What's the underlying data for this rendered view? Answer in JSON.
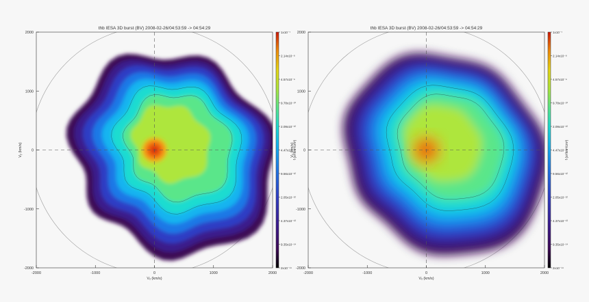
{
  "chart_data": [
    {
      "type": "heatmap",
      "title": "thb IESA 3D burst (BV) 2008-02-26/04:53:59 -> 04:54:29",
      "xlabel": "Vₓ (km/s)",
      "ylabel": "Vᵧ (km/s)",
      "xlim": [
        -2000,
        2000
      ],
      "ylim": [
        -2000,
        2000
      ],
      "xticks": [
        "-2000",
        "-1000",
        "0",
        "1000",
        "2000"
      ],
      "yticks": [
        "2000",
        "1000",
        "0",
        "-1000",
        "-2000"
      ],
      "grid": "dashed cross-hair at 0,0",
      "colorbar": {
        "label": "f (s³/km³/cm³)",
        "scale": "log",
        "ticks": [
          "1x10⁻⁷",
          "2.14x10⁻⁸",
          "4.57x10⁻⁹",
          "9.78x10⁻¹⁰",
          "2.09x10⁻¹⁰",
          "4.47x10⁻¹¹",
          "9.56x10⁻¹²",
          "2.05x10⁻¹²",
          "4.37x10⁻¹³",
          "9.35x10⁻¹⁴",
          "2x10⁻¹⁴"
        ]
      },
      "rendering": "raw (unsmoothed)"
    },
    {
      "type": "heatmap",
      "title": "thb IESA 3D burst (BV) 2008-02-26/04:53:59 -> 04:54:29",
      "xlabel": "Vₓ (km/s)",
      "ylabel": "Vᵧ (km/s)",
      "xlim": [
        -2000,
        2000
      ],
      "ylim": [
        -2000,
        2000
      ],
      "xticks": [
        "-2000",
        "-1000",
        "0",
        "1000",
        "2000"
      ],
      "yticks": [
        "2000",
        "1000",
        "0",
        "-1000",
        "-2000"
      ],
      "grid": "dashed cross-hair at 0,0",
      "colorbar": {
        "label": "f (s³/km³/cm³)",
        "scale": "log",
        "ticks": [
          "1x10⁻⁷",
          "2.14x10⁻⁸",
          "4.57x10⁻⁹",
          "9.78x10⁻¹⁰",
          "2.09x10⁻¹⁰",
          "4.47x10⁻¹¹",
          "9.56x10⁻¹²",
          "2.05x10⁻¹²",
          "4.37x10⁻¹³",
          "9.35x10⁻¹⁴",
          "2x10⁻¹⁴"
        ]
      },
      "rendering": "smoothed"
    }
  ],
  "colors": {
    "background": "#f7f7f7",
    "colormap": [
      "#000000",
      "#3d0a55",
      "#3b1a8c",
      "#2f3ec4",
      "#1f78e6",
      "#14b4f0",
      "#1fdcd0",
      "#5ae68a",
      "#aee63c",
      "#e6d614",
      "#f08c0a",
      "#cc1a0a"
    ],
    "core": "#e05010",
    "contour": "#1a1a1a"
  }
}
